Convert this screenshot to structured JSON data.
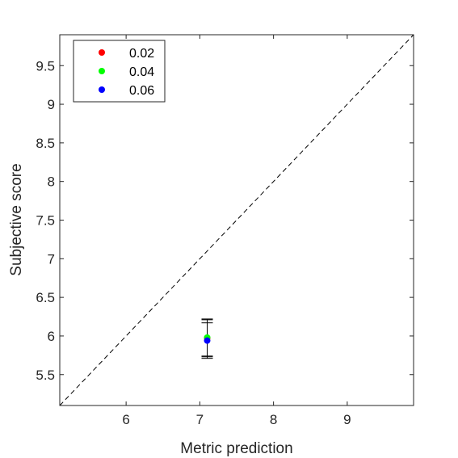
{
  "chart_data": {
    "type": "scatter",
    "title": "",
    "xlabel": "Metric prediction",
    "ylabel": "Subjective score",
    "xlim": [
      5.1,
      9.9
    ],
    "ylim": [
      5.1,
      9.9
    ],
    "xticks": [
      6,
      7,
      8,
      9
    ],
    "yticks": [
      5.5,
      6,
      6.5,
      7,
      7.5,
      8,
      8.5,
      9,
      9.5
    ],
    "xtick_labels": [
      "6",
      "7",
      "8",
      "9"
    ],
    "ytick_labels": [
      "5.5",
      "6",
      "6.5",
      "7",
      "7.5",
      "8",
      "8.5",
      "9",
      "9.5"
    ],
    "grid": false,
    "legend_position": "top-left",
    "reference_line": {
      "style": "dashed",
      "from": [
        5.1,
        5.1
      ],
      "to": [
        9.9,
        9.9
      ],
      "color": "#000000"
    },
    "series": [
      {
        "name": "0.02",
        "color": "#ff0000",
        "points": [
          {
            "x": 7.1,
            "y": 5.97,
            "err_low": 5.73,
            "err_high": 6.21
          }
        ]
      },
      {
        "name": "0.04",
        "color": "#00ff00",
        "points": [
          {
            "x": 7.1,
            "y": 5.98,
            "err_low": 5.74,
            "err_high": 6.22
          }
        ]
      },
      {
        "name": "0.06",
        "color": "#0000ff",
        "points": [
          {
            "x": 7.1,
            "y": 5.94,
            "err_low": 5.71,
            "err_high": 6.17
          }
        ]
      }
    ]
  }
}
